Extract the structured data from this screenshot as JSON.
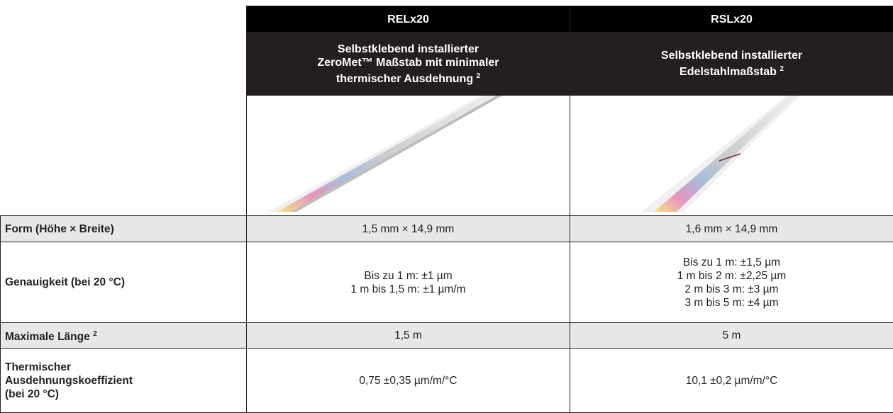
{
  "columns": [
    {
      "name": "RELx20",
      "description": [
        "Selbstklebend installierter",
        "ZeroMet™ Maßstab mit minimaler",
        "thermischer Ausdehnung"
      ],
      "footnote": "2"
    },
    {
      "name": "RSLx20",
      "description": [
        "Selbstklebend installierter",
        "Edelstahlmaßstab"
      ],
      "footnote": "2"
    }
  ],
  "rows": [
    {
      "label": [
        "Form (Höhe × Breite)"
      ],
      "values": [
        [
          "1,5 mm × 14,9 mm"
        ],
        [
          "1,6 mm × 14,9 mm"
        ]
      ]
    },
    {
      "label": [
        "Genauigkeit (bei 20 °C)"
      ],
      "values": [
        [
          "Bis zu 1 m: ±1 µm",
          "1 m bis 1,5 m: ±1 µm/m"
        ],
        [
          "Bis zu 1 m: ±1,5 µm",
          "1 m bis 2 m: ±2,25 µm",
          "2 m bis 3 m: ±3 µm",
          "3 m bis 5 m: ±4 µm"
        ]
      ]
    },
    {
      "label": [
        "Maximale Länge"
      ],
      "footnote": "2",
      "values": [
        [
          "1,5 m"
        ],
        [
          "5 m"
        ]
      ]
    },
    {
      "label": [
        "Thermischer",
        "Ausdehnungskoeffizient",
        "(bei 20 °C)"
      ],
      "values": [
        [
          "0,75 ±0,35 µm/m/°C"
        ],
        [
          "10,1 ±0,2 µm/m/°C"
        ]
      ]
    }
  ]
}
